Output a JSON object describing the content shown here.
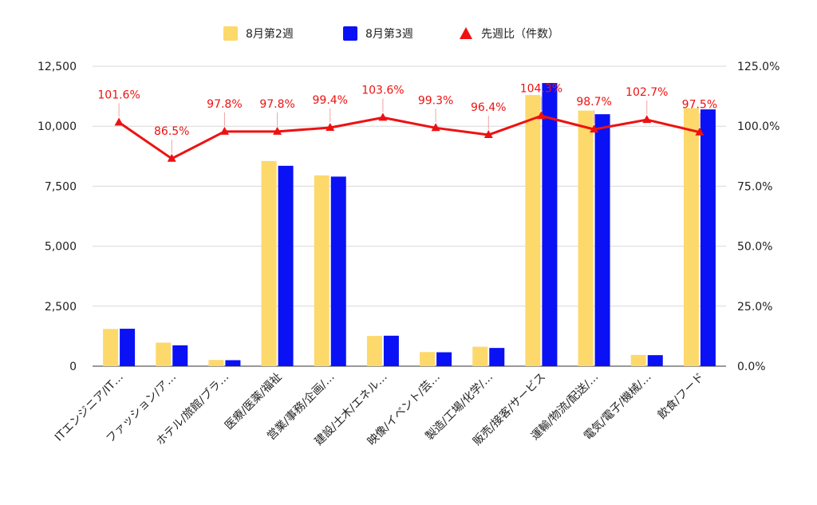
{
  "chart_data": {
    "type": "bar",
    "categories": [
      "ITエンジニア/IT…",
      "ファッション/ア…",
      "ホテル/旅館/ブラ…",
      "医療/医薬/福祉",
      "営業/事務/企画/…",
      "建設/土木/エネル…",
      "映像/イベント/芸…",
      "製造/工場/化学/…",
      "販売/接客/サービス",
      "運輸/物流/配送/…",
      "電気/電子/機械/…",
      "飲食/フード"
    ],
    "series": [
      {
        "name": "8月第2週",
        "type": "bar",
        "axis": "left",
        "color": "#fdd86b",
        "values": [
          1550,
          980,
          260,
          8550,
          7950,
          1260,
          590,
          810,
          11300,
          10650,
          470,
          10750
        ]
      },
      {
        "name": "8月第3週",
        "type": "bar",
        "axis": "left",
        "color": "#0a11f5",
        "values": [
          1560,
          870,
          250,
          8350,
          7900,
          1270,
          580,
          760,
          11800,
          10500,
          460,
          10700
        ]
      },
      {
        "name": "先週比（件数）",
        "type": "line",
        "axis": "right",
        "color": "#ee1111",
        "values": [
          101.6,
          86.5,
          97.8,
          97.8,
          99.4,
          103.6,
          99.3,
          96.4,
          104.3,
          98.7,
          102.7,
          97.5
        ],
        "labels": [
          "101.6%",
          "86.5%",
          "97.8%",
          "97.8%",
          "99.4%",
          "103.6%",
          "99.3%",
          "96.4%",
          "104.3%",
          "98.7%",
          "102.7%",
          "97.5%"
        ]
      }
    ],
    "y_left": {
      "min": 0,
      "max": 12500,
      "ticks": [
        0,
        2500,
        5000,
        7500,
        10000,
        12500
      ],
      "tick_labels": [
        "0",
        "2,500",
        "5,000",
        "7,500",
        "10,000",
        "12,500"
      ]
    },
    "y_right": {
      "min": 0,
      "max": 125,
      "ticks": [
        0,
        25,
        50,
        75,
        100,
        125
      ],
      "tick_labels": [
        "0.0%",
        "25.0%",
        "50.0%",
        "75.0%",
        "100.0%",
        "125.0%"
      ]
    },
    "grid": true,
    "legend_position": "top"
  }
}
